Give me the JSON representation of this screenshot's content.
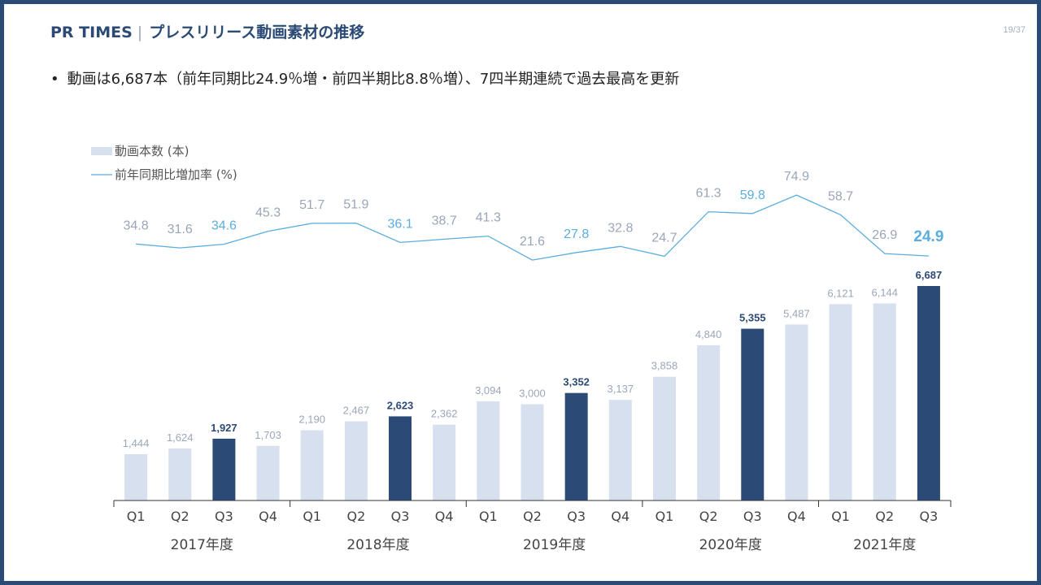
{
  "header": {
    "brand": "PR TIMES",
    "separator": "|",
    "title": "プレスリリース動画素材の推移"
  },
  "page_number": "19/37",
  "bullet": {
    "marker": "•",
    "text": "動画は6,687本（前年同期比24.9％増・前四半期比8.8％増）、7四半期連続で過去最高を更新"
  },
  "colors": {
    "bar_light": "#d6e0ee",
    "bar_dark": "#2b4a75",
    "line": "#5badde",
    "label_grey": "#9aa6b8",
    "label_highlight": "#5badde",
    "axis": "#333333"
  },
  "chart_data": {
    "type": "bar",
    "categories": [
      "Q1",
      "Q2",
      "Q3",
      "Q4",
      "Q1",
      "Q2",
      "Q3",
      "Q4",
      "Q1",
      "Q2",
      "Q3",
      "Q4",
      "Q1",
      "Q2",
      "Q3",
      "Q4",
      "Q1",
      "Q2",
      "Q3"
    ],
    "year_groups": [
      {
        "label": "2017年度",
        "count": 4
      },
      {
        "label": "2018年度",
        "count": 4
      },
      {
        "label": "2019年度",
        "count": 4
      },
      {
        "label": "2020年度",
        "count": 4
      },
      {
        "label": "2021年度",
        "count": 3
      }
    ],
    "series": [
      {
        "name": "動画本数 (本)",
        "kind": "bar",
        "values": [
          1444,
          1624,
          1927,
          1703,
          2190,
          2467,
          2623,
          2362,
          3094,
          3000,
          3352,
          3137,
          3858,
          4840,
          5355,
          5487,
          6121,
          6144,
          6687
        ],
        "labels": [
          "1,444",
          "1,624",
          "1,927",
          "1,703",
          "2,190",
          "2,467",
          "2,623",
          "2,362",
          "3,094",
          "3,000",
          "3,352",
          "3,137",
          "3,858",
          "4,840",
          "5,355",
          "5,487",
          "6,121",
          "6,144",
          "6,687"
        ],
        "highlight": [
          false,
          false,
          true,
          false,
          false,
          false,
          true,
          false,
          false,
          false,
          true,
          false,
          false,
          false,
          true,
          false,
          false,
          false,
          true
        ]
      },
      {
        "name": "前年同期比増加率 (%)",
        "kind": "line",
        "values": [
          34.8,
          31.6,
          34.6,
          45.3,
          51.7,
          51.9,
          36.1,
          38.7,
          41.3,
          21.6,
          27.8,
          32.8,
          24.7,
          61.3,
          59.8,
          74.9,
          58.7,
          26.9,
          24.9
        ],
        "labels": [
          "34.8",
          "31.6",
          "34.6",
          "45.3",
          "51.7",
          "51.9",
          "36.1",
          "38.7",
          "41.3",
          "21.6",
          "27.8",
          "32.8",
          "24.7",
          "61.3",
          "59.8",
          "74.9",
          "58.7",
          "26.9",
          "24.9"
        ],
        "highlight": [
          false,
          false,
          true,
          false,
          false,
          false,
          true,
          false,
          false,
          false,
          true,
          false,
          false,
          false,
          true,
          false,
          false,
          false,
          true
        ]
      }
    ],
    "legend": "top-left",
    "grid": false
  }
}
